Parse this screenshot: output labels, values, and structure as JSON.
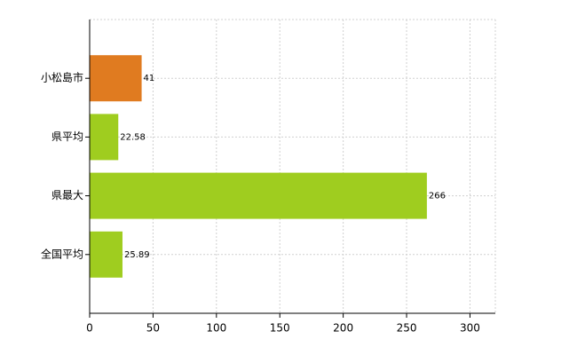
{
  "chart_data": {
    "type": "barh",
    "categories": [
      "小松島市",
      "県平均",
      "県最大",
      "全国平均"
    ],
    "values": [
      41,
      22.58,
      266,
      25.89
    ],
    "colors": [
      "#e07b20",
      "#9fcd1f",
      "#9fcd1f",
      "#9fcd1f"
    ],
    "xlim": [
      0,
      320
    ],
    "xticks": [
      0,
      50,
      100,
      150,
      200,
      250,
      300
    ],
    "grid": true
  }
}
